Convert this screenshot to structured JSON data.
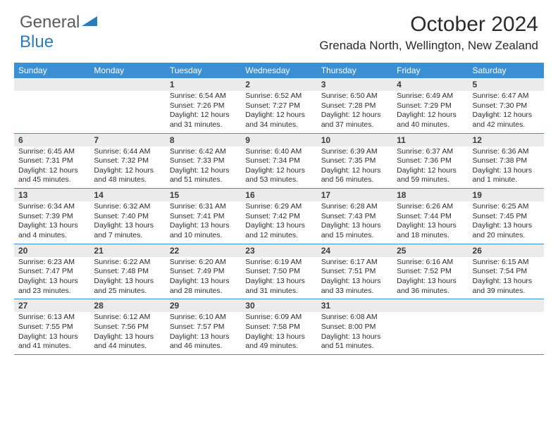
{
  "logo": {
    "part1": "General",
    "part2": "Blue"
  },
  "title": "October 2024",
  "location": "Grenada North, Wellington, New Zealand",
  "colors": {
    "header_bg": "#3b8fd4",
    "daynum_bg": "#ebebeb",
    "accent": "#2b7bbf"
  },
  "weekdays": [
    "Sunday",
    "Monday",
    "Tuesday",
    "Wednesday",
    "Thursday",
    "Friday",
    "Saturday"
  ],
  "weeks": [
    [
      {
        "n": "",
        "sunrise": "",
        "sunset": "",
        "daylight": ""
      },
      {
        "n": "",
        "sunrise": "",
        "sunset": "",
        "daylight": ""
      },
      {
        "n": "1",
        "sunrise": "Sunrise: 6:54 AM",
        "sunset": "Sunset: 7:26 PM",
        "daylight": "Daylight: 12 hours and 31 minutes."
      },
      {
        "n": "2",
        "sunrise": "Sunrise: 6:52 AM",
        "sunset": "Sunset: 7:27 PM",
        "daylight": "Daylight: 12 hours and 34 minutes."
      },
      {
        "n": "3",
        "sunrise": "Sunrise: 6:50 AM",
        "sunset": "Sunset: 7:28 PM",
        "daylight": "Daylight: 12 hours and 37 minutes."
      },
      {
        "n": "4",
        "sunrise": "Sunrise: 6:49 AM",
        "sunset": "Sunset: 7:29 PM",
        "daylight": "Daylight: 12 hours and 40 minutes."
      },
      {
        "n": "5",
        "sunrise": "Sunrise: 6:47 AM",
        "sunset": "Sunset: 7:30 PM",
        "daylight": "Daylight: 12 hours and 42 minutes."
      }
    ],
    [
      {
        "n": "6",
        "sunrise": "Sunrise: 6:45 AM",
        "sunset": "Sunset: 7:31 PM",
        "daylight": "Daylight: 12 hours and 45 minutes."
      },
      {
        "n": "7",
        "sunrise": "Sunrise: 6:44 AM",
        "sunset": "Sunset: 7:32 PM",
        "daylight": "Daylight: 12 hours and 48 minutes."
      },
      {
        "n": "8",
        "sunrise": "Sunrise: 6:42 AM",
        "sunset": "Sunset: 7:33 PM",
        "daylight": "Daylight: 12 hours and 51 minutes."
      },
      {
        "n": "9",
        "sunrise": "Sunrise: 6:40 AM",
        "sunset": "Sunset: 7:34 PM",
        "daylight": "Daylight: 12 hours and 53 minutes."
      },
      {
        "n": "10",
        "sunrise": "Sunrise: 6:39 AM",
        "sunset": "Sunset: 7:35 PM",
        "daylight": "Daylight: 12 hours and 56 minutes."
      },
      {
        "n": "11",
        "sunrise": "Sunrise: 6:37 AM",
        "sunset": "Sunset: 7:36 PM",
        "daylight": "Daylight: 12 hours and 59 minutes."
      },
      {
        "n": "12",
        "sunrise": "Sunrise: 6:36 AM",
        "sunset": "Sunset: 7:38 PM",
        "daylight": "Daylight: 13 hours and 1 minute."
      }
    ],
    [
      {
        "n": "13",
        "sunrise": "Sunrise: 6:34 AM",
        "sunset": "Sunset: 7:39 PM",
        "daylight": "Daylight: 13 hours and 4 minutes."
      },
      {
        "n": "14",
        "sunrise": "Sunrise: 6:32 AM",
        "sunset": "Sunset: 7:40 PM",
        "daylight": "Daylight: 13 hours and 7 minutes."
      },
      {
        "n": "15",
        "sunrise": "Sunrise: 6:31 AM",
        "sunset": "Sunset: 7:41 PM",
        "daylight": "Daylight: 13 hours and 10 minutes."
      },
      {
        "n": "16",
        "sunrise": "Sunrise: 6:29 AM",
        "sunset": "Sunset: 7:42 PM",
        "daylight": "Daylight: 13 hours and 12 minutes."
      },
      {
        "n": "17",
        "sunrise": "Sunrise: 6:28 AM",
        "sunset": "Sunset: 7:43 PM",
        "daylight": "Daylight: 13 hours and 15 minutes."
      },
      {
        "n": "18",
        "sunrise": "Sunrise: 6:26 AM",
        "sunset": "Sunset: 7:44 PM",
        "daylight": "Daylight: 13 hours and 18 minutes."
      },
      {
        "n": "19",
        "sunrise": "Sunrise: 6:25 AM",
        "sunset": "Sunset: 7:45 PM",
        "daylight": "Daylight: 13 hours and 20 minutes."
      }
    ],
    [
      {
        "n": "20",
        "sunrise": "Sunrise: 6:23 AM",
        "sunset": "Sunset: 7:47 PM",
        "daylight": "Daylight: 13 hours and 23 minutes."
      },
      {
        "n": "21",
        "sunrise": "Sunrise: 6:22 AM",
        "sunset": "Sunset: 7:48 PM",
        "daylight": "Daylight: 13 hours and 25 minutes."
      },
      {
        "n": "22",
        "sunrise": "Sunrise: 6:20 AM",
        "sunset": "Sunset: 7:49 PM",
        "daylight": "Daylight: 13 hours and 28 minutes."
      },
      {
        "n": "23",
        "sunrise": "Sunrise: 6:19 AM",
        "sunset": "Sunset: 7:50 PM",
        "daylight": "Daylight: 13 hours and 31 minutes."
      },
      {
        "n": "24",
        "sunrise": "Sunrise: 6:17 AM",
        "sunset": "Sunset: 7:51 PM",
        "daylight": "Daylight: 13 hours and 33 minutes."
      },
      {
        "n": "25",
        "sunrise": "Sunrise: 6:16 AM",
        "sunset": "Sunset: 7:52 PM",
        "daylight": "Daylight: 13 hours and 36 minutes."
      },
      {
        "n": "26",
        "sunrise": "Sunrise: 6:15 AM",
        "sunset": "Sunset: 7:54 PM",
        "daylight": "Daylight: 13 hours and 39 minutes."
      }
    ],
    [
      {
        "n": "27",
        "sunrise": "Sunrise: 6:13 AM",
        "sunset": "Sunset: 7:55 PM",
        "daylight": "Daylight: 13 hours and 41 minutes."
      },
      {
        "n": "28",
        "sunrise": "Sunrise: 6:12 AM",
        "sunset": "Sunset: 7:56 PM",
        "daylight": "Daylight: 13 hours and 44 minutes."
      },
      {
        "n": "29",
        "sunrise": "Sunrise: 6:10 AM",
        "sunset": "Sunset: 7:57 PM",
        "daylight": "Daylight: 13 hours and 46 minutes."
      },
      {
        "n": "30",
        "sunrise": "Sunrise: 6:09 AM",
        "sunset": "Sunset: 7:58 PM",
        "daylight": "Daylight: 13 hours and 49 minutes."
      },
      {
        "n": "31",
        "sunrise": "Sunrise: 6:08 AM",
        "sunset": "Sunset: 8:00 PM",
        "daylight": "Daylight: 13 hours and 51 minutes."
      },
      {
        "n": "",
        "sunrise": "",
        "sunset": "",
        "daylight": ""
      },
      {
        "n": "",
        "sunrise": "",
        "sunset": "",
        "daylight": ""
      }
    ]
  ]
}
